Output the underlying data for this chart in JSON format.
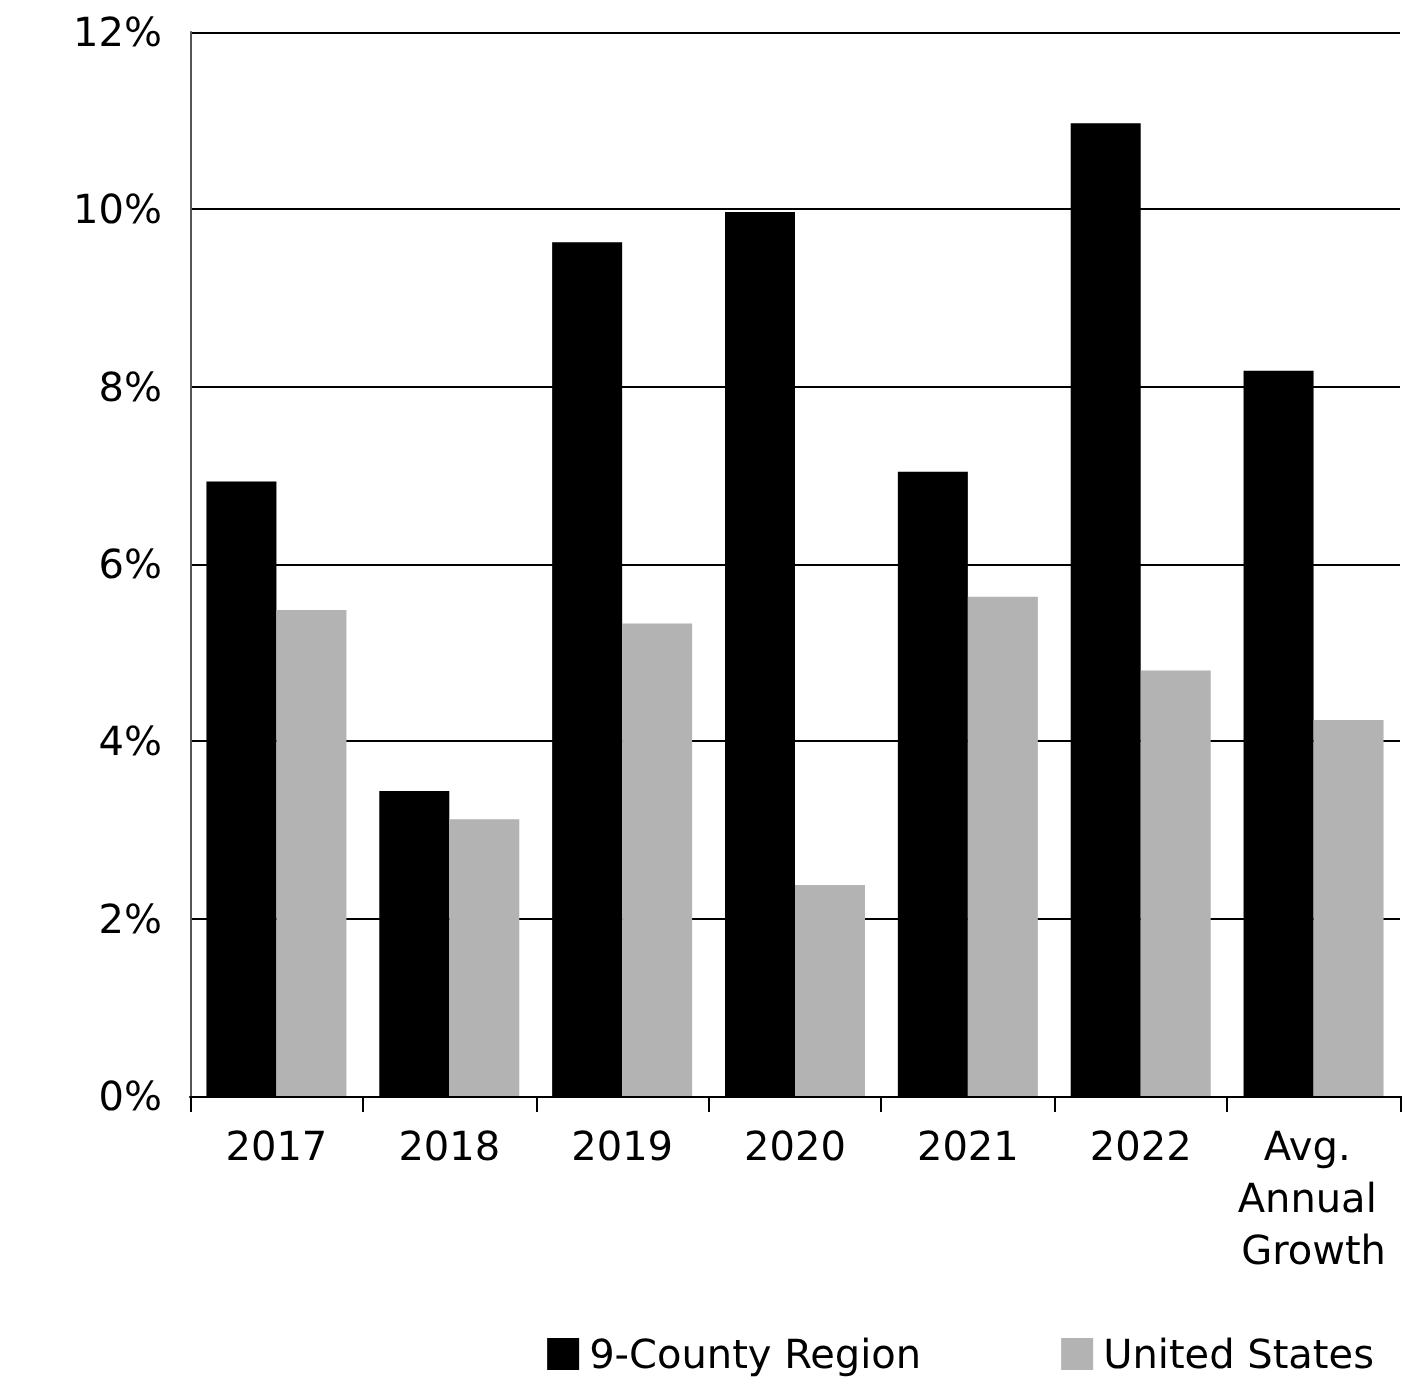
{
  "chart_data": {
    "type": "bar",
    "categories": [
      "2017",
      "2018",
      "2019",
      "2020",
      "2021",
      "2022",
      "Avg. Annual Growth"
    ],
    "series": [
      {
        "name": "9-County Region",
        "color": "#000000",
        "values": [
          6.93,
          3.44,
          9.63,
          9.97,
          7.04,
          10.97,
          8.18
        ]
      },
      {
        "name": "United States",
        "color": "#b3b3b3",
        "values": [
          5.48,
          3.12,
          5.33,
          2.38,
          5.63,
          4.8,
          4.24
        ]
      }
    ],
    "ylim": [
      0,
      12
    ],
    "yticks": [
      {
        "value": 0,
        "label": "0%"
      },
      {
        "value": 2,
        "label": "2%"
      },
      {
        "value": 4,
        "label": "4%"
      },
      {
        "value": 6,
        "label": "6%"
      },
      {
        "value": 8,
        "label": "8%"
      },
      {
        "value": 10,
        "label": "10%"
      },
      {
        "value": 12,
        "label": "12%"
      }
    ],
    "grid": "y",
    "legend": "bottom right"
  }
}
